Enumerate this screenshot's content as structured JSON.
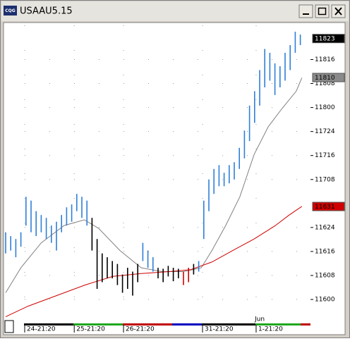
{
  "window": {
    "icon": "CQG",
    "title": "USAAU5.15"
  },
  "chart_data": {
    "type": "hlbar",
    "month_label": "Jun",
    "ylim": [
      115.78,
      118.9
    ],
    "yticks": [
      {
        "value": 116,
        "label": "11600"
      },
      {
        "value": 116.25,
        "label": "11608"
      },
      {
        "value": 116.5,
        "label": "11616"
      },
      {
        "value": 116.75,
        "label": "11624"
      },
      {
        "value": 117.25,
        "label": "11708"
      },
      {
        "value": 117.5,
        "label": "11716"
      },
      {
        "value": 117.75,
        "label": "11724"
      },
      {
        "value": 118,
        "label": "11800"
      },
      {
        "value": 118.25,
        "label": "11808"
      },
      {
        "value": 118.5,
        "label": "11816"
      }
    ],
    "xlim": [
      0,
      59
    ],
    "xticks": [
      {
        "value": 3.75,
        "label": "24-21:20"
      },
      {
        "value": 13.5,
        "label": "25-21:20"
      },
      {
        "value": 23.2,
        "label": "26-21:20"
      },
      {
        "value": 38.75,
        "label": "31-21:20"
      },
      {
        "value": 49.3,
        "label": "1-21:20"
      }
    ],
    "grid": true,
    "bars": {
      "high": [
        116.7,
        116.66,
        116.63,
        116.7,
        117.07,
        117.03,
        116.92,
        116.88,
        116.85,
        116.77,
        116.81,
        116.88,
        116.96,
        116.99,
        117.1,
        117.07,
        117.03,
        116.85,
        116.63,
        116.48,
        116.44,
        116.4,
        116.37,
        116.26,
        116.33,
        116.29,
        116.37,
        116.59,
        116.51,
        116.44,
        116.33,
        116.32,
        116.35,
        116.33,
        116.32,
        116.29,
        116.33,
        116.37,
        116.4,
        117.03,
        117.25,
        117.36,
        117.4,
        117.32,
        117.4,
        117.43,
        117.58,
        117.76,
        118.02,
        118.17,
        118.39,
        118.61,
        118.57,
        118.46,
        118.43,
        118.57,
        118.65,
        118.79,
        118.76
      ],
      "low": [
        116.48,
        116.51,
        116.44,
        116.55,
        116.77,
        116.7,
        116.66,
        116.7,
        116.63,
        116.59,
        116.51,
        116.7,
        116.77,
        116.81,
        116.92,
        116.85,
        116.77,
        116.51,
        116.11,
        116.18,
        116.22,
        116.22,
        116.15,
        116.07,
        116.11,
        116.04,
        116.18,
        116.4,
        116.33,
        116.29,
        116.22,
        116.18,
        116.24,
        116.19,
        116.22,
        116.15,
        116.18,
        116.26,
        116.29,
        116.63,
        116.92,
        117.1,
        117.18,
        117.18,
        117.21,
        117.25,
        117.36,
        117.47,
        117.65,
        117.84,
        118.02,
        118.21,
        118.28,
        118.13,
        118.21,
        118.28,
        118.39,
        118.57,
        118.65
      ],
      "colors": [
        "#2f7fd8",
        "#2f7fd8",
        "#2f7fd8",
        "#2f7fd8",
        "#2f7fd8",
        "#2f7fd8",
        "#2f7fd8",
        "#2f7fd8",
        "#2f7fd8",
        "#2f7fd8",
        "#2f7fd8",
        "#2f7fd8",
        "#2f7fd8",
        "#2f7fd8",
        "#2f7fd8",
        "#2f7fd8",
        "#2f7fd8",
        "#000000",
        "#000000",
        "#000000",
        "#000000",
        "#000000",
        "#000000",
        "#000000",
        "#000000",
        "#000000",
        "#000000",
        "#2f7fd8",
        "#2f7fd8",
        "#2f7fd8",
        "#000000",
        "#000000",
        "#000000",
        "#000000",
        "#000000",
        "#d00000",
        "#d00000",
        "#000000",
        "#2f7fd8",
        "#2f7fd8",
        "#2f7fd8",
        "#2f7fd8",
        "#2f7fd8",
        "#2f7fd8",
        "#2f7fd8",
        "#2f7fd8",
        "#2f7fd8",
        "#2f7fd8",
        "#2f7fd8",
        "#2f7fd8",
        "#2f7fd8",
        "#2f7fd8",
        "#2f7fd8",
        "#2f7fd8",
        "#2f7fd8",
        "#2f7fd8",
        "#2f7fd8",
        "#2f7fd8",
        "#2f7fd8"
      ]
    },
    "lines": [
      {
        "color": "#808080",
        "x": [
          0,
          3,
          7,
          11.5,
          15.5,
          18.3,
          22.5,
          26.7,
          30.8,
          35,
          38.5,
          40.6,
          43.3,
          46.1,
          48.9,
          51.7,
          54.4,
          57.2,
          58.3
        ],
        "values": [
          116.07,
          116.33,
          116.59,
          116.77,
          116.83,
          116.74,
          116.51,
          116.33,
          116.29,
          116.29,
          116.33,
          116.51,
          116.77,
          117.07,
          117.51,
          117.8,
          117.99,
          118.17,
          118.31
        ]
      },
      {
        "color": "#d00000",
        "x": [
          0,
          4.4,
          10,
          15.6,
          21.1,
          26.7,
          32.2,
          36.4,
          40.6,
          44.7,
          48.9,
          53.1,
          55.8,
          58.3
        ],
        "values": [
          115.82,
          115.93,
          116.04,
          116.15,
          116.24,
          116.27,
          116.29,
          116.31,
          116.39,
          116.51,
          116.63,
          116.77,
          116.88,
          116.97
        ]
      }
    ],
    "markers": [
      {
        "value": 118.71875,
        "label": "11823",
        "bg": "#000000",
        "fg": "#ffffff"
      },
      {
        "value": 118.3125,
        "label": "11810",
        "bg": "#8a8a8a",
        "fg": "#000000"
      },
      {
        "value": 116.96875,
        "label": "11631",
        "bg": "#d00000",
        "fg": "#000000"
      }
    ]
  }
}
